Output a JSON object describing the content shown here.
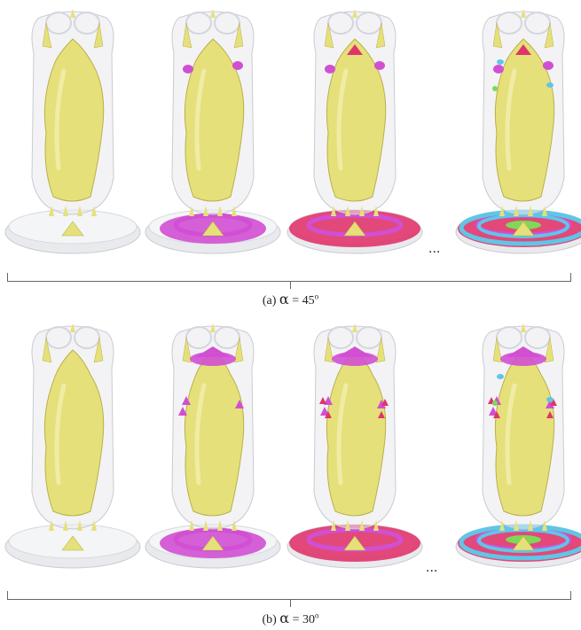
{
  "panels": [
    {
      "caption": {
        "prefix": "(b) ",
        "symbol": "α",
        "equals": " = 30",
        "superscript": "o"
      },
      "stages": [
        {
          "layers": [
            "yellow"
          ]
        },
        {
          "layers": [
            "yellow",
            "magenta"
          ]
        },
        {
          "layers": [
            "yellow",
            "magenta",
            "crimson"
          ]
        },
        {
          "layers": [
            "yellow",
            "magenta",
            "crimson",
            "cyan",
            "green"
          ]
        }
      ]
    }
  ],
  "top_panel": {
    "caption": {
      "prefix": "(a) ",
      "symbol": "α",
      "equals": " = 45",
      "superscript": "o"
    },
    "stages": [
      {
        "layers": [
          "yellow"
        ]
      },
      {
        "layers": [
          "yellow",
          "magenta"
        ]
      },
      {
        "layers": [
          "yellow",
          "magenta",
          "crimson"
        ]
      },
      {
        "layers": [
          "yellow",
          "magenta",
          "crimson",
          "cyan",
          "green"
        ]
      }
    ]
  },
  "ellipsis": "...",
  "colors": {
    "shell": "#e9eaee",
    "shell_edge": "#c9cbd2",
    "core": "#e6e07a",
    "core_shade": "#b8b04a",
    "magenta": "#d14fd3",
    "crimson": "#e0356a",
    "cyan": "#5fc6e6",
    "green": "#7ed957"
  }
}
